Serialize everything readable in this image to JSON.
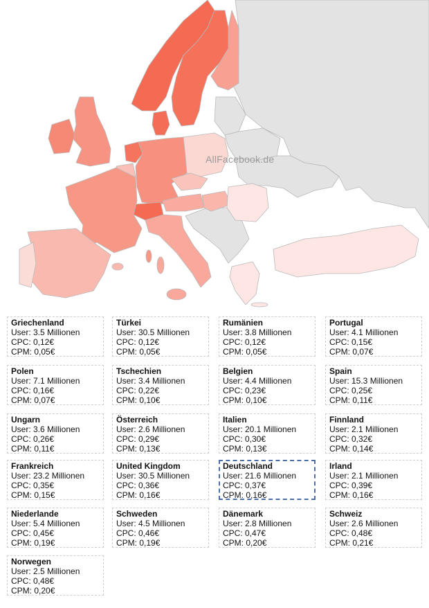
{
  "watermark": "AllFacebook.de",
  "colors": {
    "ocean": "#ffffff",
    "land_no_data": "#e3e3e3",
    "border": "#b9b9b9",
    "scale_low": "#fde6e3",
    "scale_high": "#f46a52",
    "selected_card_border": "#4a6ea8"
  },
  "chart_data": {
    "type": "table",
    "title": "",
    "metric_labels": {
      "users": "User:",
      "cpc": "CPC:",
      "cpm": "CPM:"
    },
    "selected": "Deutschland",
    "rows": [
      {
        "country": "Griechenland",
        "users": "3.5 Millionen",
        "cpc": "0,12€",
        "cpm": "0,05€"
      },
      {
        "country": "Türkei",
        "users": "30.5 Millionen",
        "cpc": "0,12€",
        "cpm": "0,05€"
      },
      {
        "country": "Rumänien",
        "users": "3.8 Millionen",
        "cpc": "0,12€",
        "cpm": "0,05€"
      },
      {
        "country": "Portugal",
        "users": "4.1 Millionen",
        "cpc": "0,15€",
        "cpm": "0,07€"
      },
      {
        "country": "Polen",
        "users": "7.1 Millionen",
        "cpc": "0,16€",
        "cpm": "0,07€"
      },
      {
        "country": "Tschechien",
        "users": "3.4 Millionen",
        "cpc": "0,22€",
        "cpm": "0,10€"
      },
      {
        "country": "Belgien",
        "users": "4.4 Millionen",
        "cpc": "0,23€",
        "cpm": "0,10€"
      },
      {
        "country": "Spain",
        "users": "15.3 Millionen",
        "cpc": "0,25€",
        "cpm": "0,11€"
      },
      {
        "country": "Ungarn",
        "users": "3.6 Millionen",
        "cpc": "0,26€",
        "cpm": "0,11€"
      },
      {
        "country": "Österreich",
        "users": "2.6 Millionen",
        "cpc": "0,29€",
        "cpm": "0,13€"
      },
      {
        "country": "Italien",
        "users": "20.1 Millionen",
        "cpc": "0,30€",
        "cpm": "0,13€"
      },
      {
        "country": "Finnland",
        "users": "2.1 Millionen",
        "cpc": "0,32€",
        "cpm": "0,14€"
      },
      {
        "country": "Frankreich",
        "users": "23.2 Millionen",
        "cpc": "0,35€",
        "cpm": "0,15€"
      },
      {
        "country": "United Kingdom",
        "users": "30.5 Millionen",
        "cpc": "0,36€",
        "cpm": "0,16€"
      },
      {
        "country": "Deutschland",
        "users": "21.6 Millionen",
        "cpc": "0,37€",
        "cpm": "0,16€"
      },
      {
        "country": "Irland",
        "users": "2.1 Millionen",
        "cpc": "0,39€",
        "cpm": "0,16€"
      },
      {
        "country": "Niederlande",
        "users": "5.4 Millionen",
        "cpc": "0,45€",
        "cpm": "0,19€"
      },
      {
        "country": "Schweden",
        "users": "4.5 Millionen",
        "cpc": "0,46€",
        "cpm": "0,19€"
      },
      {
        "country": "Dänemark",
        "users": "2.8 Millionen",
        "cpc": "0,47€",
        "cpm": "0,20€"
      },
      {
        "country": "Schweiz",
        "users": "2.6 Millionen",
        "cpc": "0,48€",
        "cpm": "0,21€"
      },
      {
        "country": "Norwegen",
        "users": "2.5 Millionen",
        "cpc": "0,48€",
        "cpm": "0,20€"
      }
    ]
  }
}
